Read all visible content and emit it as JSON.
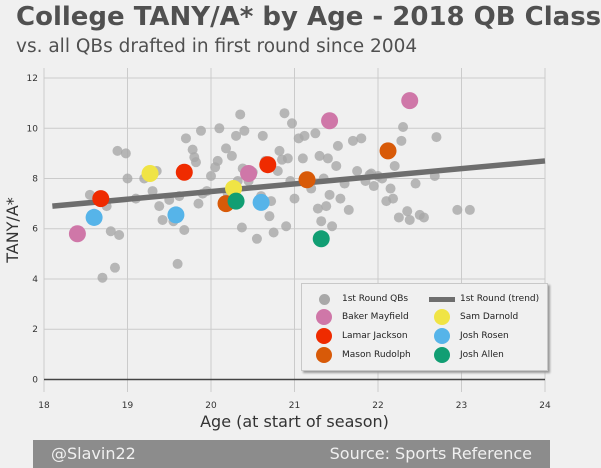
{
  "header": {
    "title": "College TANY/A* by Age - 2018 QB Class",
    "subtitle": "vs. all QBs drafted in first round since 2004"
  },
  "footer": {
    "left": "@Slavin22",
    "right": "Source: Sports Reference"
  },
  "colors": {
    "background": "#f0f0f0",
    "grid": "#cbcbcb",
    "background_points": "#a8a8a8",
    "trend": "#6e6e6e",
    "Baker Mayfield": "#cf77a8",
    "Lamar Jackson": "#ef2b00",
    "Mason Rudolph": "#d85a08",
    "Sam Darnold": "#f0e445",
    "Josh Rosen": "#56b4e9",
    "Josh Allen": "#119e73"
  },
  "chart_data": {
    "type": "scatter",
    "title": "College TANY/A* by Age - 2018 QB Class",
    "subtitle": "vs. all QBs drafted in first round since 2004",
    "xlabel": "Age (at start of season)",
    "ylabel": "TANY/A*",
    "xlim": [
      18,
      24
    ],
    "ylim": [
      -0.5,
      12.4
    ],
    "xticks": [
      18,
      19,
      20,
      21,
      22,
      23,
      24
    ],
    "yticks": [
      0,
      2,
      4,
      6,
      8,
      10,
      12
    ],
    "grid": true,
    "legend_position": "lower-right",
    "legend": {
      "columns": [
        [
          "1st Round QBs",
          "Baker Mayfield",
          "Lamar Jackson",
          "Mason Rudolph"
        ],
        [
          "1st Round (trend)",
          "Sam Darnold",
          "Josh Rosen",
          "Josh Allen"
        ]
      ]
    },
    "trend": {
      "name": "1st Round (trend)",
      "x": [
        18.1,
        24.0
      ],
      "y": [
        6.9,
        8.7
      ]
    },
    "series": [
      {
        "name": "1st Round QBs",
        "points": [
          [
            18.55,
            7.35
          ],
          [
            18.6,
            6.6
          ],
          [
            18.7,
            4.05
          ],
          [
            18.75,
            6.9
          ],
          [
            18.8,
            5.9
          ],
          [
            18.85,
            4.45
          ],
          [
            18.9,
            5.75
          ],
          [
            18.88,
            9.1
          ],
          [
            18.98,
            9.0
          ],
          [
            19.0,
            8.0
          ],
          [
            19.1,
            7.2
          ],
          [
            19.2,
            8.0
          ],
          [
            19.3,
            7.5
          ],
          [
            19.35,
            8.3
          ],
          [
            19.38,
            6.9
          ],
          [
            19.42,
            6.35
          ],
          [
            19.5,
            7.15
          ],
          [
            19.55,
            6.3
          ],
          [
            19.6,
            4.6
          ],
          [
            19.62,
            7.3
          ],
          [
            19.68,
            5.95
          ],
          [
            19.7,
            9.6
          ],
          [
            19.78,
            9.15
          ],
          [
            19.8,
            8.85
          ],
          [
            19.82,
            8.65
          ],
          [
            19.85,
            7.0
          ],
          [
            19.9,
            7.4
          ],
          [
            19.95,
            7.5
          ],
          [
            19.88,
            9.9
          ],
          [
            20.0,
            8.1
          ],
          [
            20.05,
            8.45
          ],
          [
            20.08,
            8.7
          ],
          [
            20.1,
            10.0
          ],
          [
            20.15,
            7.1
          ],
          [
            20.18,
            9.2
          ],
          [
            20.2,
            7.4
          ],
          [
            20.25,
            8.9
          ],
          [
            20.3,
            9.7
          ],
          [
            20.32,
            7.9
          ],
          [
            20.35,
            10.55
          ],
          [
            20.37,
            6.05
          ],
          [
            20.38,
            8.4
          ],
          [
            20.4,
            9.9
          ],
          [
            20.45,
            7.9
          ],
          [
            20.5,
            8.25
          ],
          [
            20.55,
            5.6
          ],
          [
            20.6,
            7.3
          ],
          [
            20.62,
            9.7
          ],
          [
            20.65,
            8.7
          ],
          [
            20.7,
            6.5
          ],
          [
            20.72,
            7.1
          ],
          [
            20.75,
            5.85
          ],
          [
            20.8,
            8.3
          ],
          [
            20.82,
            9.1
          ],
          [
            20.85,
            8.75
          ],
          [
            20.88,
            10.6
          ],
          [
            20.9,
            6.1
          ],
          [
            20.92,
            8.8
          ],
          [
            20.95,
            7.9
          ],
          [
            20.97,
            10.2
          ],
          [
            21.0,
            7.2
          ],
          [
            21.05,
            9.6
          ],
          [
            21.1,
            8.8
          ],
          [
            21.12,
            9.7
          ],
          [
            21.2,
            7.6
          ],
          [
            21.25,
            9.8
          ],
          [
            21.28,
            6.8
          ],
          [
            21.3,
            8.9
          ],
          [
            21.32,
            6.3
          ],
          [
            21.35,
            8.0
          ],
          [
            21.38,
            6.9
          ],
          [
            21.4,
            8.8
          ],
          [
            21.42,
            7.35
          ],
          [
            21.45,
            6.1
          ],
          [
            21.5,
            8.5
          ],
          [
            21.52,
            9.3
          ],
          [
            21.55,
            7.2
          ],
          [
            21.6,
            7.8
          ],
          [
            21.65,
            6.75
          ],
          [
            21.7,
            9.5
          ],
          [
            21.75,
            8.3
          ],
          [
            21.8,
            9.6
          ],
          [
            21.85,
            7.9
          ],
          [
            21.9,
            8.15
          ],
          [
            21.92,
            8.2
          ],
          [
            21.95,
            7.7
          ],
          [
            22.0,
            8.1
          ],
          [
            22.05,
            8.0
          ],
          [
            22.1,
            7.1
          ],
          [
            22.15,
            7.6
          ],
          [
            22.18,
            7.2
          ],
          [
            22.2,
            8.5
          ],
          [
            22.25,
            6.45
          ],
          [
            22.28,
            9.5
          ],
          [
            22.3,
            10.05
          ],
          [
            22.35,
            6.7
          ],
          [
            22.38,
            6.35
          ],
          [
            22.45,
            7.8
          ],
          [
            22.5,
            6.55
          ],
          [
            22.55,
            6.45
          ],
          [
            22.68,
            8.1
          ],
          [
            22.7,
            9.65
          ],
          [
            22.95,
            6.75
          ],
          [
            23.1,
            6.75
          ]
        ]
      },
      {
        "name": "Baker Mayfield",
        "points": [
          [
            18.4,
            5.8
          ],
          [
            20.45,
            8.2
          ],
          [
            21.42,
            10.3
          ],
          [
            22.38,
            11.1
          ]
        ]
      },
      {
        "name": "Lamar Jackson",
        "points": [
          [
            18.68,
            7.2
          ],
          [
            19.68,
            8.25
          ],
          [
            20.68,
            8.55
          ]
        ]
      },
      {
        "name": "Mason Rudolph",
        "points": [
          [
            20.18,
            7.0
          ],
          [
            21.15,
            7.95
          ],
          [
            22.12,
            9.1
          ]
        ]
      },
      {
        "name": "Sam Darnold",
        "points": [
          [
            19.27,
            8.2
          ],
          [
            20.27,
            7.6
          ]
        ]
      },
      {
        "name": "Josh Rosen",
        "points": [
          [
            18.6,
            6.45
          ],
          [
            19.58,
            6.55
          ],
          [
            20.6,
            7.05
          ]
        ]
      },
      {
        "name": "Josh Allen",
        "points": [
          [
            20.3,
            7.1
          ],
          [
            21.32,
            5.6
          ]
        ]
      }
    ]
  }
}
